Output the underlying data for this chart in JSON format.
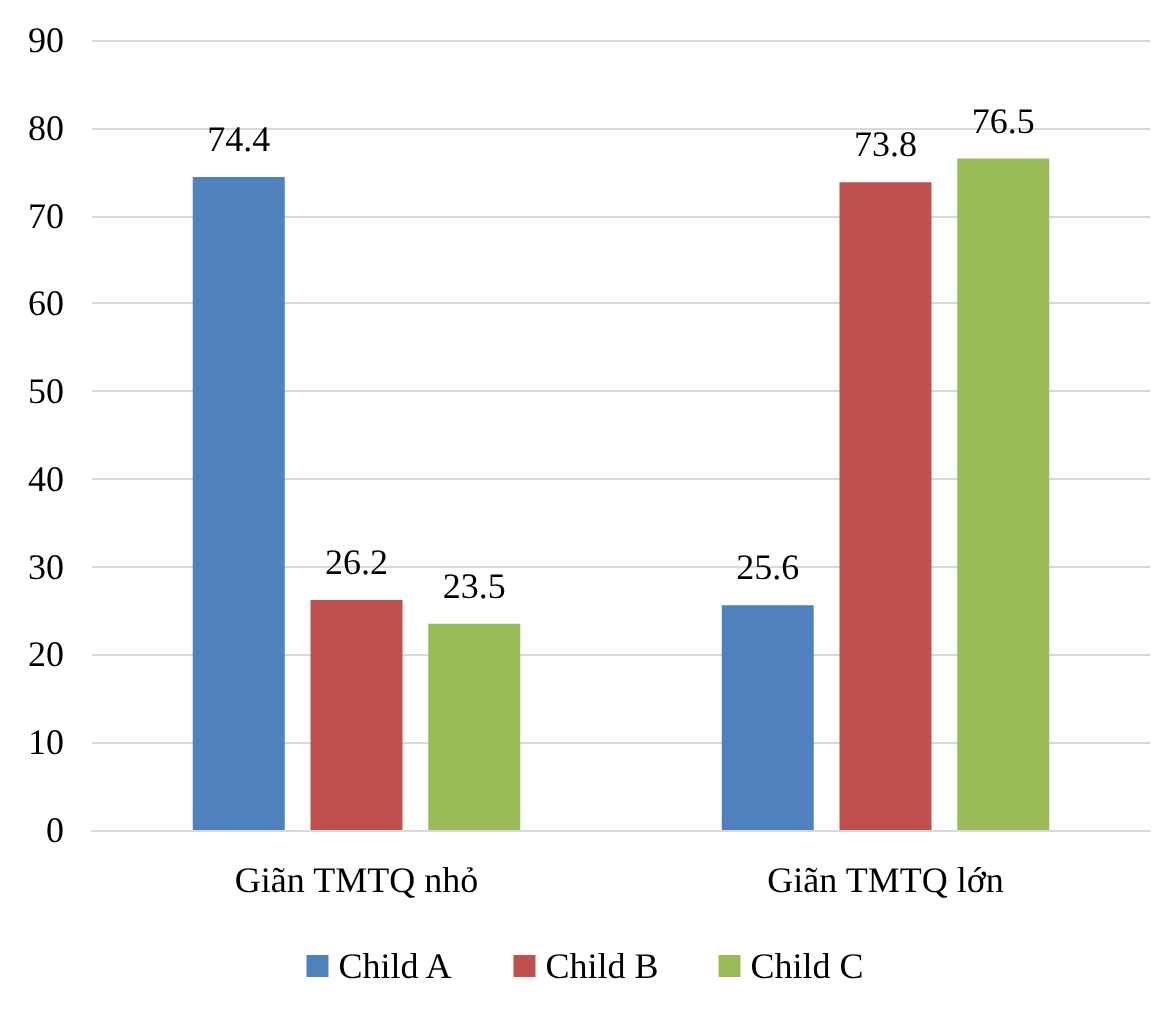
{
  "chart_data": {
    "type": "bar",
    "categories": [
      "Giãn TMTQ nhỏ",
      "Giãn TMTQ lớn"
    ],
    "series": [
      {
        "name": "Child A",
        "color": "#4f81bd",
        "values": [
          74.4,
          25.6
        ]
      },
      {
        "name": "Child B",
        "color": "#c0504d",
        "values": [
          26.2,
          73.8
        ]
      },
      {
        "name": "Child C",
        "color": "#9bbb59",
        "values": [
          23.5,
          76.5
        ]
      }
    ],
    "ylim": [
      0,
      90
    ],
    "yticks": [
      0,
      10,
      20,
      30,
      40,
      50,
      60,
      70,
      80,
      90
    ],
    "grid": "y",
    "legend": "bottom",
    "data_labels": true
  }
}
